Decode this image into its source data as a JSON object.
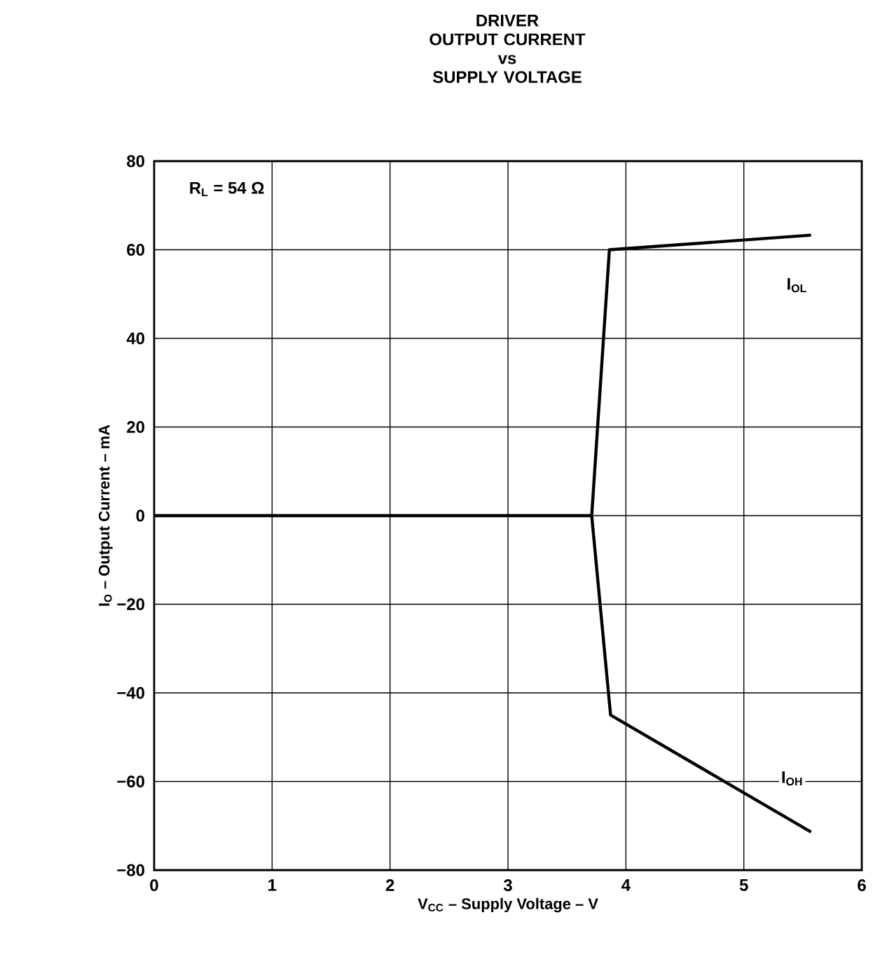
{
  "chart_data": {
    "type": "line",
    "title": "DRIVER\nOUTPUT CURRENT\nvs\nSUPPLY VOLTAGE",
    "xlabel": "V$_{CC}$ – Supply Voltage – V",
    "ylabel": "I$_{O}$ – Output Current – mA",
    "annotations": [
      "R$_{L}$ = 54 Ω",
      {
        "text": "I$_{OL}$",
        "x": 5.45,
        "y": 52
      },
      {
        "text": "I$_{OH}$",
        "x": 5.41,
        "y": -59.3
      }
    ],
    "xlim": [
      0,
      6
    ],
    "xticks": [
      0,
      1,
      2,
      3,
      4,
      5,
      6
    ],
    "ylim": [
      -80,
      80
    ],
    "yticks": [
      {
        "value": -80,
        "label": "−80"
      },
      {
        "value": -60,
        "label": "−60"
      },
      {
        "value": -40,
        "label": "−40"
      },
      {
        "value": -20,
        "label": "−20"
      },
      0,
      20,
      40,
      60,
      80
    ],
    "grid": true,
    "marker": "none",
    "line_style": "solid",
    "series": [
      {
        "color": "#000000",
        "x": [
          0,
          3.71,
          3.86,
          5.57,
          4.5,
          3.71,
          3.87,
          5.57
        ],
        "values": [
          0,
          0,
          60,
          63.3,
          null,
          0,
          -45,
          -71.4
        ]
      }
    ]
  }
}
